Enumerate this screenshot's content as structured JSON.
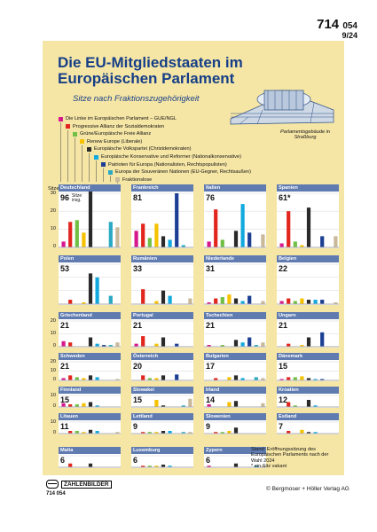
{
  "header": {
    "code_main": "714",
    "code_small": "054",
    "version": "9/24"
  },
  "title": "Die EU-Mitgliedstaaten im Europäischen Parlament",
  "subtitle": "Sitze nach Fraktionszugehörigkeit",
  "building_caption": "Parlamentsgebäude in Straßburg",
  "seats_label": "Sitze",
  "footer": {
    "status": "Stand: Eröffnungssitzung des Europäischen Parlaments nach der Wahl 2024",
    "footnote": "* ein Sitz vakant",
    "logo": "ZAHLENBILDER",
    "code": "714 054",
    "copyright": "© Bergmoser + Höller Verlag AG"
  },
  "chart_data": {
    "type": "bar",
    "categories": [
      "Die Linke im Europäischen Parlament – GUE/NGL",
      "Progressive Allianz der Sozialdemokraten",
      "Grüne/Europäische Freie Allianz",
      "Renew Europe (Liberale)",
      "Europäische Volkspartei (Christdemokraten)",
      "Europäische Konservative und Reformer (Nationalkonservative)",
      "Patrioten für Europa (Nationalisten, Rechtspopulisten)",
      "Europa der Souveränen Nationen (EU-Gegner, Rechtsaußen)",
      "Fraktionslose"
    ],
    "colors": [
      "#d6188c",
      "#e2261e",
      "#71bf44",
      "#f6c200",
      "#2a2a2a",
      "#12a9de",
      "#1c3f94",
      "#29a9c4",
      "#c9b999"
    ],
    "ylim": [
      0,
      30
    ],
    "yticks": [
      0,
      10,
      20,
      30
    ],
    "panels": [
      {
        "name": "Deutschland",
        "total": "96",
        "total_note": "Sitze insg.",
        "values": [
          3,
          14,
          15,
          8,
          31,
          0,
          0,
          14,
          11
        ]
      },
      {
        "name": "Frankreich",
        "total": "81",
        "values": [
          9,
          13,
          5,
          13,
          6,
          4,
          30,
          1,
          0
        ]
      },
      {
        "name": "Italien",
        "total": "76",
        "values": [
          3,
          21,
          4,
          0,
          9,
          24,
          8,
          0,
          7
        ]
      },
      {
        "name": "Spanien",
        "total": "61*",
        "values": [
          2,
          20,
          3,
          1,
          22,
          0,
          6,
          0,
          6
        ]
      },
      {
        "name": "Polen",
        "total": "53",
        "values": [
          0,
          3,
          0,
          1,
          23,
          20,
          0,
          6,
          0
        ]
      },
      {
        "name": "Rumänien",
        "total": "33",
        "values": [
          0,
          11,
          0,
          2,
          10,
          6,
          0,
          0,
          4
        ]
      },
      {
        "name": "Niederlande",
        "total": "31",
        "values": [
          1,
          4,
          5,
          7,
          4,
          2,
          6,
          0,
          2
        ]
      },
      {
        "name": "Belgien",
        "total": "22",
        "values": [
          2,
          4,
          2,
          4,
          3,
          3,
          3,
          0,
          1
        ]
      },
      {
        "name": "Griechenland",
        "total": "21",
        "values": [
          4,
          3,
          0,
          0,
          7,
          2,
          1,
          1,
          3
        ]
      },
      {
        "name": "Portugal",
        "total": "21",
        "values": [
          2,
          8,
          0,
          2,
          7,
          0,
          2,
          0,
          0
        ]
      },
      {
        "name": "Tschechien",
        "total": "21",
        "values": [
          1,
          0,
          1,
          0,
          5,
          3,
          7,
          1,
          3
        ]
      },
      {
        "name": "Ungarn",
        "total": "21",
        "values": [
          0,
          2,
          0,
          1,
          7,
          0,
          11,
          0,
          0
        ]
      },
      {
        "name": "Schweden",
        "total": "21",
        "values": [
          2,
          5,
          3,
          2,
          5,
          3,
          0,
          0,
          1
        ]
      },
      {
        "name": "Österreich",
        "total": "20",
        "values": [
          0,
          5,
          2,
          2,
          5,
          0,
          6,
          0,
          0
        ]
      },
      {
        "name": "Bulgarien",
        "total": "17",
        "values": [
          0,
          2,
          0,
          3,
          5,
          2,
          0,
          3,
          2
        ]
      },
      {
        "name": "Dänemark",
        "total": "15",
        "values": [
          1,
          3,
          3,
          4,
          2,
          1,
          1,
          0,
          0
        ]
      },
      {
        "name": "Finnland",
        "total": "15",
        "values": [
          3,
          2,
          2,
          3,
          4,
          1,
          0,
          0,
          0
        ]
      },
      {
        "name": "Slowakei",
        "total": "15",
        "values": [
          0,
          0,
          0,
          6,
          1,
          0,
          0,
          1,
          7
        ]
      },
      {
        "name": "Irland",
        "total": "14",
        "values": [
          2,
          0,
          0,
          4,
          5,
          0,
          0,
          0,
          3
        ]
      },
      {
        "name": "Kroatien",
        "total": "12",
        "values": [
          0,
          4,
          1,
          0,
          6,
          1,
          0,
          0,
          0
        ]
      },
      {
        "name": "Litauen",
        "total": "11",
        "values": [
          0,
          2,
          2,
          1,
          3,
          2,
          0,
          0,
          1
        ]
      },
      {
        "name": "Lettland",
        "total": "9",
        "values": [
          0,
          1,
          1,
          1,
          2,
          2,
          0,
          1,
          1
        ]
      },
      {
        "name": "Slowenien",
        "total": "9",
        "values": [
          0,
          1,
          1,
          2,
          5,
          0,
          0,
          0,
          0
        ]
      },
      {
        "name": "Estland",
        "total": "7",
        "values": [
          0,
          2,
          0,
          3,
          1,
          1,
          0,
          0,
          0
        ]
      },
      {
        "name": "Malta",
        "total": "6",
        "values": [
          0,
          3,
          0,
          0,
          3,
          0,
          0,
          0,
          0
        ]
      },
      {
        "name": "Luxemburg",
        "total": "6",
        "values": [
          0,
          1,
          1,
          1,
          2,
          1,
          0,
          0,
          0
        ]
      },
      {
        "name": "Zypern",
        "total": "6",
        "values": [
          1,
          0,
          0,
          0,
          3,
          0,
          0,
          1,
          1
        ]
      }
    ]
  }
}
